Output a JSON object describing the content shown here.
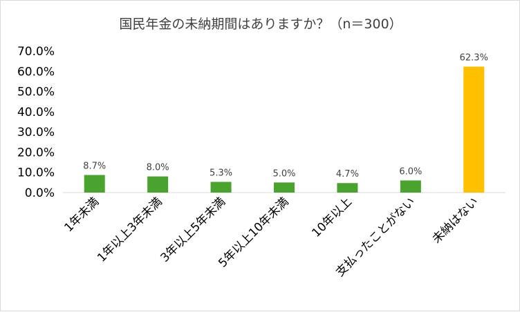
{
  "chart_data": {
    "type": "bar",
    "title": "国民年金の未納期間はありますか？（n＝300）",
    "xlabel": "",
    "ylabel": "",
    "ylim": [
      0,
      70
    ],
    "yticks": [
      "0.0%",
      "10.0%",
      "20.0%",
      "30.0%",
      "40.0%",
      "50.0%",
      "60.0%",
      "70.0%"
    ],
    "grid": false,
    "legend": "none",
    "categories": [
      "1年未満",
      "1年以上3年未満",
      "3年以上5年未満",
      "5年以上10年未満",
      "10年以上",
      "支払ったことがない",
      "未納はない"
    ],
    "values": [
      8.7,
      8.0,
      5.3,
      5.0,
      4.7,
      6.0,
      62.3
    ],
    "data_labels": [
      "8.7%",
      "8.0%",
      "5.3%",
      "5.0%",
      "4.7%",
      "6.0%",
      "62.3%"
    ],
    "colors": {
      "default": "#4aa32f",
      "highlight": "#ffc000",
      "highlight_index": 6
    }
  }
}
